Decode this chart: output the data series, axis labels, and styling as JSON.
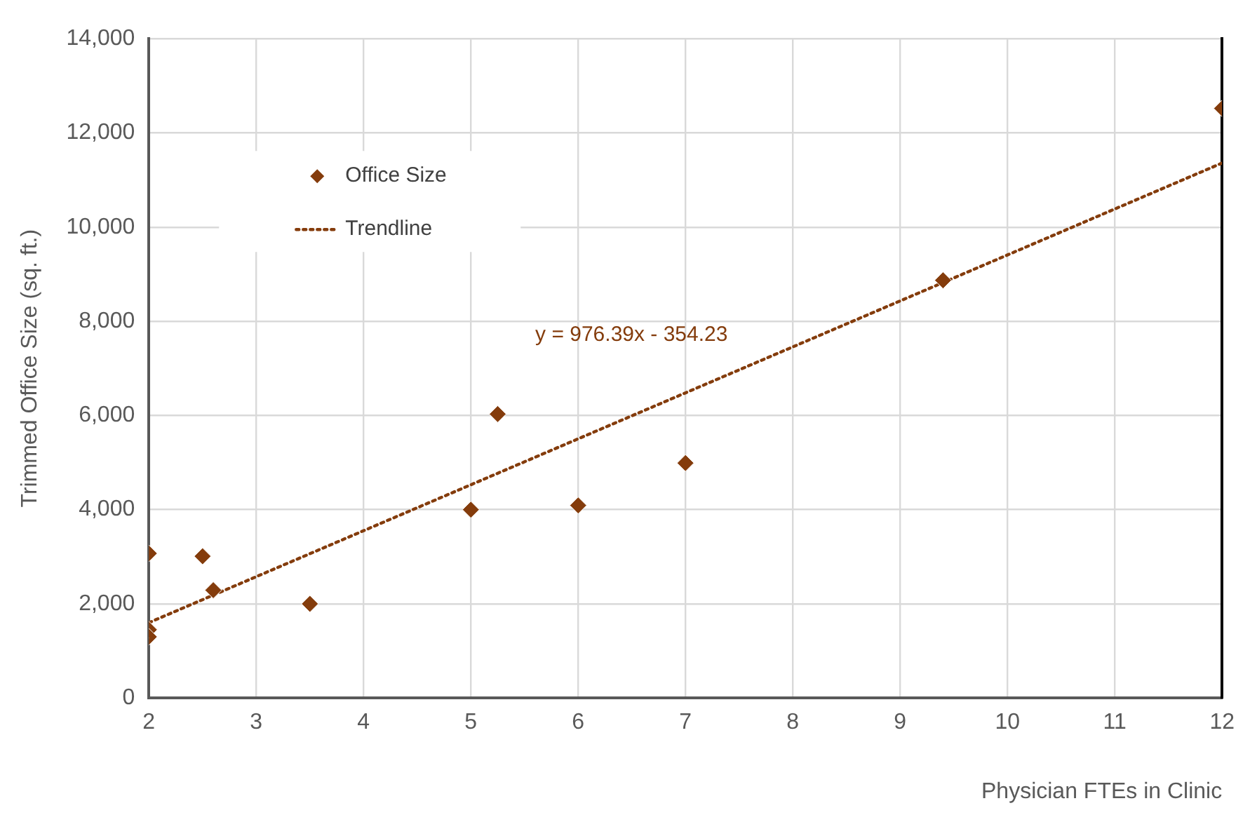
{
  "chart_data": {
    "type": "scatter",
    "xlabel": "Physician FTEs in Clinic",
    "ylabel": "Trimmed Office Size (sq. ft.)",
    "xlim": [
      2,
      12
    ],
    "xticks": [
      2,
      3,
      4,
      5,
      6,
      7,
      8,
      9,
      10,
      11,
      12
    ],
    "ylim": [
      0,
      14000
    ],
    "yticks": [
      0,
      {
        "value": 2000,
        "label": "2,000"
      },
      {
        "value": 4000,
        "label": "4,000"
      },
      {
        "value": 6000,
        "label": "6,000"
      },
      {
        "value": 8000,
        "label": "8,000"
      },
      {
        "value": 10000,
        "label": "10,000"
      },
      {
        "value": 12000,
        "label": "12,000"
      },
      {
        "value": 14000,
        "label": "14,000"
      }
    ],
    "grid": true,
    "legend": "top left",
    "series": [
      {
        "name": "Office Size",
        "type": "scatter",
        "color": "#843c0c",
        "marker": "diamond",
        "x": [
          2,
          2,
          2,
          2.5,
          2.6,
          3.5,
          5,
          5.25,
          6,
          7,
          9.4,
          12
        ],
        "values": [
          3070,
          1450,
          1300,
          3010,
          2290,
          2000,
          4000,
          6030,
          4090,
          4990,
          8870,
          12520
        ]
      },
      {
        "name": "Trendline",
        "type": "line",
        "color": "#843c0c",
        "marker": "none",
        "line_style": "dotted",
        "x": [
          2,
          12
        ],
        "values": [
          1600,
          11360
        ]
      }
    ],
    "annotations": [
      "y = 976.39x - 354.23"
    ]
  }
}
